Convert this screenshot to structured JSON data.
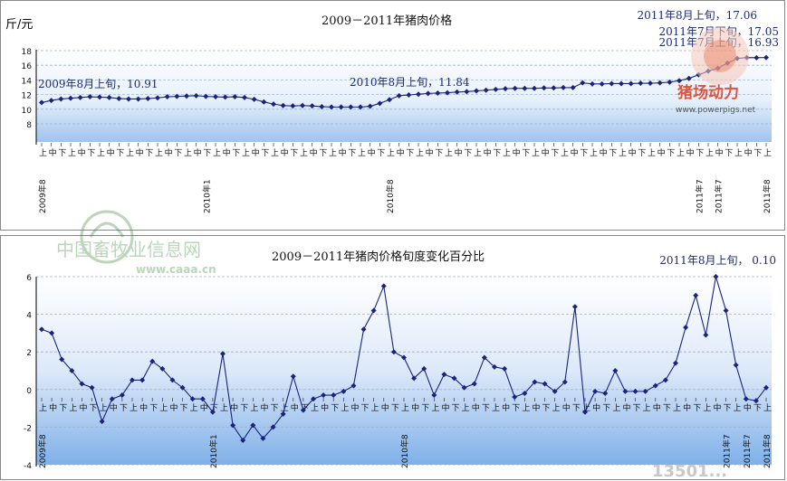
{
  "chart_data": [
    {
      "type": "line",
      "title": "2009－2011年猪肉价格",
      "ylabel": "斤/元",
      "ylim": [
        8,
        18
      ],
      "yticks": [
        "8",
        "10",
        "12",
        "14",
        "16",
        "18"
      ],
      "grid": true,
      "x_group_labels": [
        "2009年8",
        "2010年1",
        "2010年8",
        "2011年7",
        "2011年7",
        "2011年8"
      ],
      "annotations": [
        {
          "text": "2009年8月上旬，10.91",
          "index": 0
        },
        {
          "text": "2010年8月上旬，11.84",
          "index": 36
        },
        {
          "text": "2011年7月上旬，16.93",
          "index": 69
        },
        {
          "text": "2011年7月下旬，17.05",
          "index": 71
        },
        {
          "text": "2011年8月上旬，17.06",
          "index": 72
        }
      ],
      "series": [
        {
          "values": [
            10.91,
            11.2,
            11.4,
            11.5,
            11.6,
            11.7,
            11.65,
            11.6,
            11.45,
            11.4,
            11.4,
            11.45,
            11.55,
            11.7,
            11.75,
            11.8,
            11.85,
            11.75,
            11.7,
            11.65,
            11.7,
            11.6,
            11.35,
            11.0,
            10.7,
            10.5,
            10.45,
            10.5,
            10.45,
            10.35,
            10.3,
            10.3,
            10.3,
            10.3,
            10.4,
            10.8,
            11.3,
            11.84,
            11.95,
            12.05,
            12.15,
            12.2,
            12.25,
            12.35,
            12.4,
            12.5,
            12.6,
            12.7,
            12.8,
            12.85,
            12.85,
            12.85,
            12.9,
            12.9,
            12.95,
            12.95,
            13.6,
            13.45,
            13.45,
            13.5,
            13.5,
            13.5,
            13.55,
            13.55,
            13.6,
            13.7,
            13.9,
            14.2,
            14.7,
            15.2,
            15.6,
            16.3,
            16.93,
            17.05,
            17.03,
            17.06
          ]
        }
      ]
    },
    {
      "type": "line",
      "title": "2009－2011年猪肉价格旬度变化百分比",
      "ylim": [
        -4,
        6
      ],
      "yticks": [
        "-4",
        "-2",
        "0",
        "2",
        "4",
        "6"
      ],
      "grid": true,
      "x_group_labels": [
        "2009年8",
        "2010年1",
        "2010年8",
        "2011年7",
        "2011年7",
        "2011年8"
      ],
      "annotations": [
        {
          "text": "2011年8月上旬，  0.10",
          "index": 75
        }
      ],
      "series": [
        {
          "values": [
            3.2,
            3.0,
            1.6,
            1.0,
            0.3,
            0.1,
            -1.7,
            -0.5,
            -0.3,
            0.5,
            0.5,
            1.5,
            1.1,
            0.5,
            0.1,
            -0.5,
            -0.5,
            -1.2,
            1.9,
            -1.9,
            -2.7,
            -1.9,
            -2.6,
            -2.0,
            -1.3,
            0.7,
            -1.1,
            -0.5,
            -0.3,
            -0.3,
            -0.1,
            0.2,
            3.2,
            4.2,
            5.5,
            2.0,
            1.7,
            0.6,
            1.1,
            -0.3,
            0.8,
            0.6,
            0.1,
            0.3,
            1.7,
            1.2,
            1.1,
            -0.4,
            -0.2,
            0.4,
            0.3,
            -0.1,
            0.4,
            4.4,
            -1.2,
            -0.1,
            -0.2,
            1.0,
            -0.1,
            -0.1,
            -0.1,
            0.2,
            0.5,
            1.4,
            3.3,
            5.0,
            2.9,
            6.0,
            4.2,
            1.3,
            -0.5,
            -0.6,
            0.1
          ]
        }
      ]
    }
  ],
  "watermarks": {
    "top_logo": "猪场动力",
    "top_url": "www.powerpigs.net",
    "mid_logo": "中国畜牧业信息网",
    "mid_url": "www.caaa.cn",
    "bottom_right": "13501..."
  },
  "colors": {
    "line": "#1a237e",
    "band": "#a9c9f0"
  }
}
